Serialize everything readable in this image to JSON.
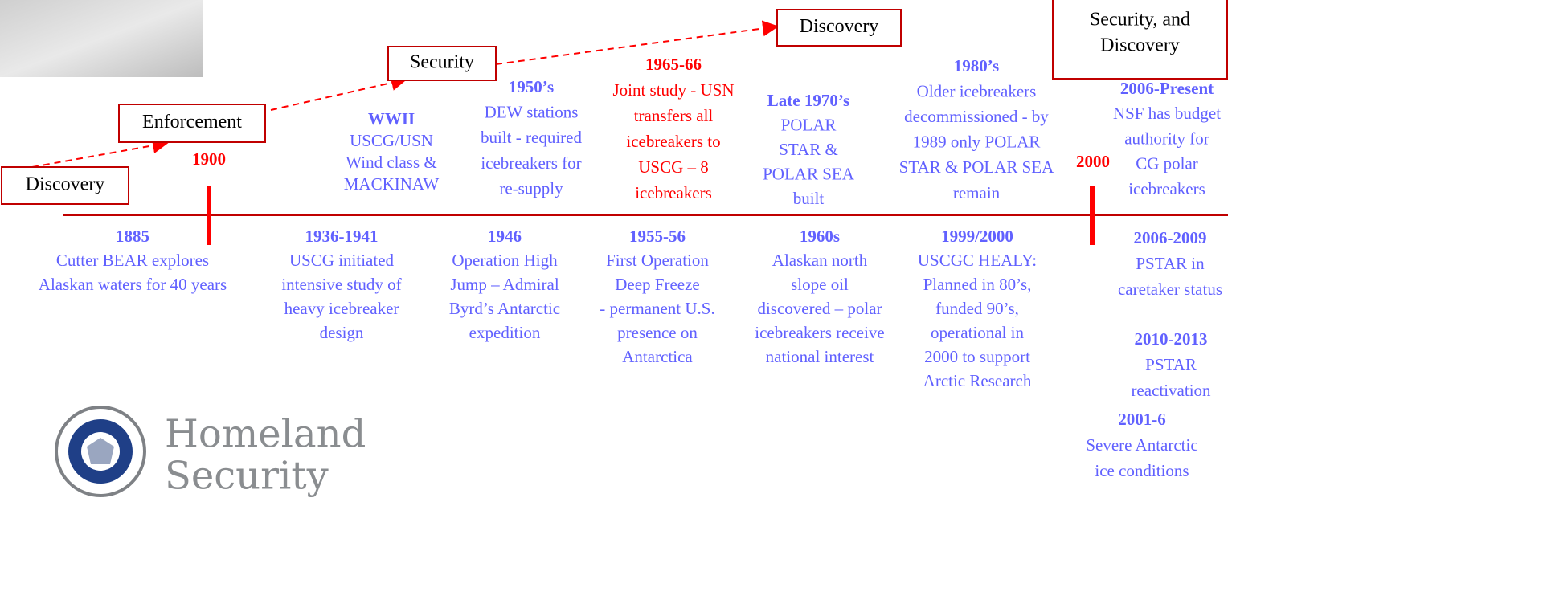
{
  "boxes": [
    {
      "lines": [
        "Discovery"
      ]
    },
    {
      "lines": [
        "Enforcement"
      ]
    },
    {
      "lines": [
        "Security"
      ]
    },
    {
      "lines": [
        "Discovery"
      ]
    },
    {
      "lines": [
        "Security, and",
        "Discovery"
      ]
    }
  ],
  "markers": [
    {
      "label": "1900",
      "color": "#ff0000"
    },
    {
      "label": "2000",
      "color": "#ff0000"
    }
  ],
  "events_above": [
    {
      "title": "WWII",
      "lines": [
        "USCG/USN",
        "Wind class &",
        "MACKINAW"
      ],
      "color": "#6161ff"
    },
    {
      "title": "1950’s",
      "lines": [
        "DEW stations",
        "built - required",
        "icebreakers for",
        "re-supply"
      ],
      "color": "#6161ff"
    },
    {
      "title": "1965-66",
      "lines": [
        "Joint study - USN",
        "transfers all",
        "icebreakers to",
        "USCG – 8",
        "icebreakers"
      ],
      "color": "#ff0000"
    },
    {
      "title": "Late 1970’s",
      "lines": [
        "POLAR",
        "STAR &",
        "POLAR SEA",
        "built"
      ],
      "color": "#6161ff"
    },
    {
      "title": "1980’s",
      "lines": [
        "Older icebreakers",
        "decommissioned -  by",
        "1989 only POLAR",
        "STAR & POLAR SEA",
        "remain"
      ],
      "color": "#6161ff"
    },
    {
      "title": "2006-Present",
      "lines": [
        "NSF has budget",
        "authority for",
        "CG polar",
        "icebreakers"
      ],
      "color": "#6161ff"
    }
  ],
  "events_below": [
    {
      "title": "1885",
      "lines": [
        "Cutter BEAR explores",
        "Alaskan waters for 40 years"
      ],
      "color": "#6161ff"
    },
    {
      "title": "1936-1941",
      "lines": [
        "USCG initiated",
        "intensive study of",
        "heavy icebreaker",
        "design"
      ],
      "color": "#6161ff"
    },
    {
      "title": "1946",
      "lines": [
        "Operation High",
        "Jump – Admiral",
        "Byrd’s Antarctic",
        "expedition"
      ],
      "color": "#6161ff"
    },
    {
      "title": "1955-56",
      "lines": [
        "First Operation",
        "Deep Freeze",
        "- permanent U.S.",
        "presence on",
        "Antarctica"
      ],
      "color": "#6161ff"
    },
    {
      "title": "1960s",
      "lines": [
        "Alaskan north",
        "slope oil",
        "discovered – polar",
        "icebreakers receive",
        "national interest"
      ],
      "color": "#6161ff"
    },
    {
      "title": "1999/2000",
      "lines": [
        "USCGC HEALY:",
        "Planned in 80’s,",
        "funded 90’s,",
        "operational in",
        "2000 to support",
        "Arctic Research"
      ],
      "color": "#6161ff"
    },
    {
      "title": "2006-2009",
      "lines": [
        "PSTAR in",
        "caretaker status"
      ],
      "color": "#6161ff"
    },
    {
      "title": "2010-2013",
      "lines": [
        "PSTAR",
        "reactivation"
      ],
      "color": "#6161ff"
    },
    {
      "title": "2001-6",
      "lines": [
        "Severe Antarctic",
        "ice conditions"
      ],
      "color": "#6161ff"
    }
  ],
  "logo": {
    "lines": [
      "Homeland",
      "Security"
    ]
  }
}
